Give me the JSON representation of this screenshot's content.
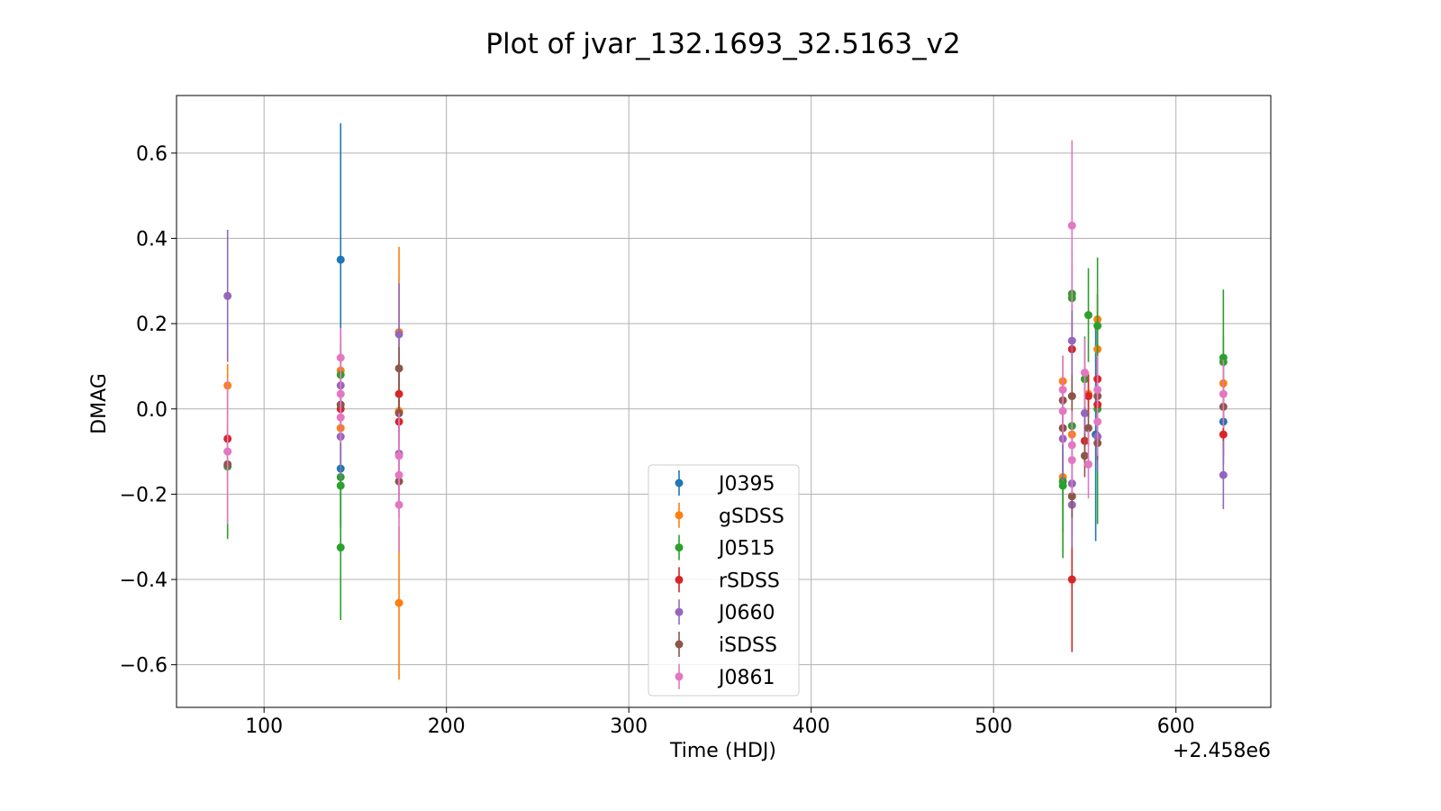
{
  "chart_data": {
    "type": "scatter",
    "title": "Plot of jvar_132.1693_32.5163_v2",
    "xlabel": "Time (HDJ)",
    "ylabel": "DMAG",
    "x_offset_label": "+2.458e6",
    "xlim": [
      52,
      652
    ],
    "ylim": [
      -0.7,
      0.735
    ],
    "x_ticks": [
      100,
      200,
      300,
      400,
      500,
      600
    ],
    "x_tick_labels": [
      "100",
      "200",
      "300",
      "400",
      "500",
      "600"
    ],
    "y_ticks": [
      -0.6,
      -0.4,
      -0.2,
      0.0,
      0.2,
      0.4,
      0.6
    ],
    "y_tick_labels": [
      "−0.6",
      "−0.4",
      "−0.2",
      "0.0",
      "0.2",
      "0.4",
      "0.6"
    ],
    "grid": true,
    "legend_position": "lower-center",
    "series": [
      {
        "name": "J0395",
        "color": "#1f77b4",
        "points": [
          {
            "x": 142,
            "y": 0.35,
            "err": 0.32
          },
          {
            "x": 142,
            "y": -0.14,
            "err": 0.14
          },
          {
            "x": 556,
            "y": -0.06,
            "err": 0.25
          },
          {
            "x": 626,
            "y": -0.03,
            "err": 0.1
          }
        ]
      },
      {
        "name": "gSDSS",
        "color": "#ff7f0e",
        "points": [
          {
            "x": 80,
            "y": 0.055,
            "err": 0.05
          },
          {
            "x": 142,
            "y": 0.09,
            "err": 0.06
          },
          {
            "x": 142,
            "y": -0.045,
            "err": 0.05
          },
          {
            "x": 174,
            "y": 0.18,
            "err": 0.2
          },
          {
            "x": 174,
            "y": -0.455,
            "err": 0.18
          },
          {
            "x": 174,
            "y": -0.005,
            "err": 0.05
          },
          {
            "x": 538,
            "y": 0.065,
            "err": 0.06
          },
          {
            "x": 538,
            "y": -0.16,
            "err": 0.06
          },
          {
            "x": 543,
            "y": -0.06,
            "err": 0.05
          },
          {
            "x": 552,
            "y": 0.035,
            "err": 0.05
          },
          {
            "x": 557,
            "y": 0.21,
            "err": 0.06
          },
          {
            "x": 557,
            "y": 0.14,
            "err": 0.05
          },
          {
            "x": 626,
            "y": 0.06,
            "err": 0.05
          }
        ]
      },
      {
        "name": "J0515",
        "color": "#2ca02c",
        "points": [
          {
            "x": 80,
            "y": -0.135,
            "err": 0.17
          },
          {
            "x": 142,
            "y": -0.325,
            "err": 0.17
          },
          {
            "x": 142,
            "y": -0.18,
            "err": 0.1
          },
          {
            "x": 142,
            "y": -0.16,
            "err": 0.11
          },
          {
            "x": 142,
            "y": 0.08,
            "err": 0.1
          },
          {
            "x": 538,
            "y": -0.18,
            "err": 0.17
          },
          {
            "x": 538,
            "y": -0.17,
            "err": 0.12
          },
          {
            "x": 543,
            "y": 0.27,
            "err": 0.1
          },
          {
            "x": 543,
            "y": 0.26,
            "err": 0.08
          },
          {
            "x": 543,
            "y": -0.04,
            "err": 0.1
          },
          {
            "x": 550,
            "y": 0.07,
            "err": 0.1
          },
          {
            "x": 552,
            "y": 0.22,
            "err": 0.11
          },
          {
            "x": 557,
            "y": 0.195,
            "err": 0.16
          },
          {
            "x": 557,
            "y": 0.0,
            "err": 0.27
          },
          {
            "x": 626,
            "y": 0.12,
            "err": 0.16
          },
          {
            "x": 626,
            "y": 0.11,
            "err": 0.06
          }
        ]
      },
      {
        "name": "rSDSS",
        "color": "#d62728",
        "points": [
          {
            "x": 80,
            "y": -0.07,
            "err": 0.04
          },
          {
            "x": 142,
            "y": 0.0,
            "err": 0.05
          },
          {
            "x": 174,
            "y": 0.035,
            "err": 0.05
          },
          {
            "x": 174,
            "y": -0.03,
            "err": 0.05
          },
          {
            "x": 543,
            "y": 0.14,
            "err": 0.06
          },
          {
            "x": 543,
            "y": -0.4,
            "err": 0.17
          },
          {
            "x": 550,
            "y": -0.075,
            "err": 0.05
          },
          {
            "x": 552,
            "y": 0.03,
            "err": 0.05
          },
          {
            "x": 557,
            "y": 0.07,
            "err": 0.05
          },
          {
            "x": 557,
            "y": 0.01,
            "err": 0.04
          },
          {
            "x": 626,
            "y": -0.06,
            "err": 0.05
          }
        ]
      },
      {
        "name": "J0660",
        "color": "#9467bd",
        "points": [
          {
            "x": 80,
            "y": 0.265,
            "err": 0.155
          },
          {
            "x": 142,
            "y": 0.055,
            "err": 0.1
          },
          {
            "x": 142,
            "y": -0.065,
            "err": 0.1
          },
          {
            "x": 174,
            "y": 0.175,
            "err": 0.12
          },
          {
            "x": 174,
            "y": -0.105,
            "err": 0.1
          },
          {
            "x": 538,
            "y": -0.07,
            "err": 0.1
          },
          {
            "x": 543,
            "y": 0.16,
            "err": 0.08
          },
          {
            "x": 543,
            "y": -0.175,
            "err": 0.12
          },
          {
            "x": 543,
            "y": -0.225,
            "err": 0.1
          },
          {
            "x": 550,
            "y": -0.01,
            "err": 0.08
          },
          {
            "x": 557,
            "y": -0.065,
            "err": 0.08
          },
          {
            "x": 626,
            "y": -0.155,
            "err": 0.08
          }
        ]
      },
      {
        "name": "iSDSS",
        "color": "#8c564b",
        "points": [
          {
            "x": 80,
            "y": -0.13,
            "err": 0.04
          },
          {
            "x": 142,
            "y": 0.01,
            "err": 0.05
          },
          {
            "x": 174,
            "y": 0.095,
            "err": 0.05
          },
          {
            "x": 174,
            "y": -0.17,
            "err": 0.05
          },
          {
            "x": 174,
            "y": -0.01,
            "err": 0.04
          },
          {
            "x": 538,
            "y": 0.02,
            "err": 0.05
          },
          {
            "x": 538,
            "y": -0.045,
            "err": 0.04
          },
          {
            "x": 543,
            "y": 0.03,
            "err": 0.05
          },
          {
            "x": 543,
            "y": -0.205,
            "err": 0.05
          },
          {
            "x": 550,
            "y": -0.11,
            "err": 0.05
          },
          {
            "x": 552,
            "y": -0.045,
            "err": 0.04
          },
          {
            "x": 557,
            "y": 0.03,
            "err": 0.04
          },
          {
            "x": 557,
            "y": -0.08,
            "err": 0.04
          },
          {
            "x": 626,
            "y": 0.005,
            "err": 0.05
          }
        ]
      },
      {
        "name": "J0861",
        "color": "#e377c2",
        "points": [
          {
            "x": 80,
            "y": -0.1,
            "err": 0.17
          },
          {
            "x": 142,
            "y": 0.12,
            "err": 0.07
          },
          {
            "x": 142,
            "y": 0.035,
            "err": 0.06
          },
          {
            "x": 142,
            "y": -0.02,
            "err": 0.06
          },
          {
            "x": 174,
            "y": -0.11,
            "err": 0.1
          },
          {
            "x": 174,
            "y": -0.155,
            "err": 0.1
          },
          {
            "x": 174,
            "y": -0.225,
            "err": 0.11
          },
          {
            "x": 538,
            "y": 0.045,
            "err": 0.08
          },
          {
            "x": 538,
            "y": -0.005,
            "err": 0.08
          },
          {
            "x": 543,
            "y": 0.43,
            "err": 0.2
          },
          {
            "x": 543,
            "y": -0.12,
            "err": 0.08
          },
          {
            "x": 543,
            "y": -0.085,
            "err": 0.08
          },
          {
            "x": 550,
            "y": 0.085,
            "err": 0.08
          },
          {
            "x": 552,
            "y": -0.13,
            "err": 0.08
          },
          {
            "x": 557,
            "y": 0.045,
            "err": 0.08
          },
          {
            "x": 557,
            "y": -0.03,
            "err": 0.08
          },
          {
            "x": 626,
            "y": 0.035,
            "err": 0.08
          }
        ]
      }
    ]
  }
}
